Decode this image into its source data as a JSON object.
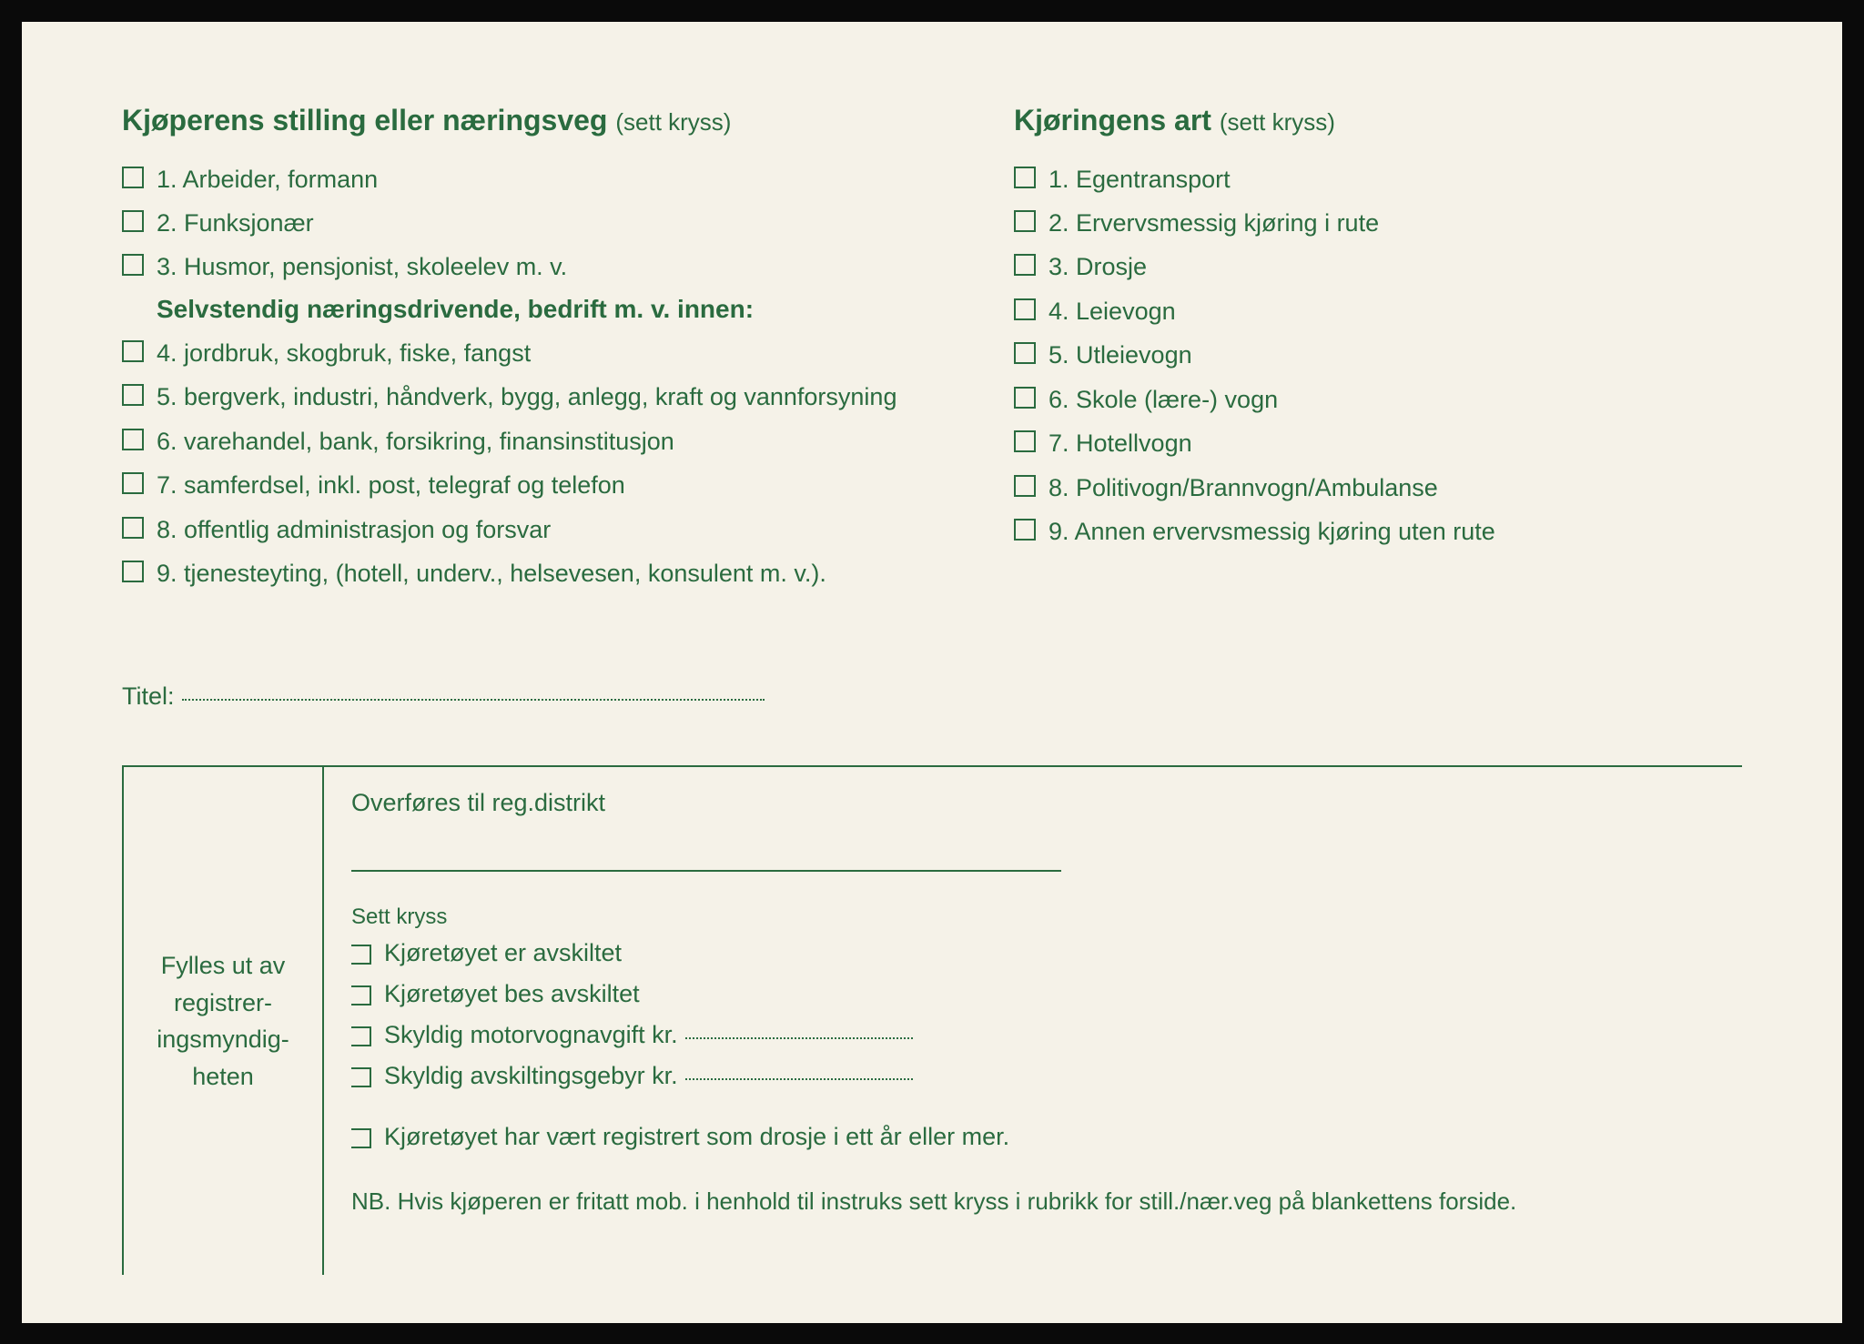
{
  "colors": {
    "ink": "#2a6b3f",
    "paper": "#f5f2e8",
    "frame": "#0a0a0a"
  },
  "left": {
    "heading_bold": "Kjøperens stilling eller næringsveg",
    "heading_sub": "(sett kryss)",
    "items_a": [
      "1. Arbeider, formann",
      "2. Funksjonær",
      "3. Husmor, pensjonist, skoleelev m. v."
    ],
    "subheading": "Selvstendig næringsdrivende, bedrift m. v. innen:",
    "items_b": [
      "4. jordbruk, skogbruk, fiske, fangst",
      "5. bergverk, industri, håndverk, bygg, anlegg, kraft og vannforsyning",
      "6. varehandel, bank, forsikring, finansinstitusjon",
      "7. samferdsel, inkl. post, telegraf og telefon",
      "8. offentlig administrasjon og forsvar",
      "9. tjenesteyting, (hotell, underv., helsevesen, konsulent m. v.)."
    ]
  },
  "right": {
    "heading_bold": "Kjøringens art",
    "heading_sub": "(sett kryss)",
    "items": [
      "1. Egentransport",
      "2. Ervervsmessig kjøring i rute",
      "3. Drosje",
      "4. Leievogn",
      "5. Utleievogn",
      "6. Skole (lære-) vogn",
      "7. Hotellvogn",
      "8. Politivogn/Brannvogn/Ambulanse",
      "9. Annen ervervsmessig kjøring uten rute"
    ]
  },
  "title_label": "Titel:",
  "admin": {
    "left_text": "Fylles ut av registrer-ingsmyndig-heten",
    "transfer": "Overføres til reg.distrikt",
    "sett_kryss": "Sett kryss",
    "checks": [
      "Kjøretøyet er avskiltet",
      "Kjøretøyet bes avskiltet",
      "Skyldig motorvognavgift kr.",
      "Skyldig avskiltingsgebyr kr."
    ],
    "drosje": "Kjøretøyet har vært registrert som drosje i ett år eller mer.",
    "nb": "NB. Hvis kjøperen er fritatt mob. i henhold til instruks sett kryss i rubrikk for still./nær.veg på blankettens forside."
  }
}
